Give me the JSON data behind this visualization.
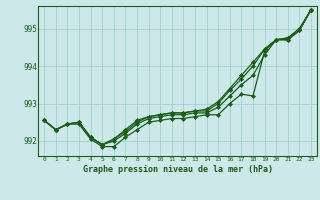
{
  "title": "Graphe pression niveau de la mer (hPa)",
  "bg_color": "#cce8e8",
  "grid_color": "#99cccc",
  "line_color": "#1a5c1a",
  "x_labels": [
    "0",
    "1",
    "2",
    "3",
    "4",
    "5",
    "6",
    "7",
    "8",
    "9",
    "10",
    "11",
    "12",
    "13",
    "14",
    "15",
    "16",
    "17",
    "18",
    "19",
    "20",
    "21",
    "22",
    "23"
  ],
  "ylim": [
    991.6,
    995.6
  ],
  "yticks": [
    992,
    993,
    994,
    995
  ],
  "series": [
    [
      992.55,
      992.3,
      992.45,
      992.45,
      992.05,
      991.85,
      991.85,
      992.1,
      992.3,
      992.5,
      992.55,
      992.6,
      992.6,
      992.65,
      992.7,
      992.7,
      993.0,
      993.25,
      993.2,
      994.4,
      994.7,
      994.7,
      994.95,
      995.5
    ],
    [
      992.55,
      992.3,
      992.45,
      992.5,
      992.1,
      991.9,
      992.0,
      992.2,
      992.45,
      992.6,
      992.65,
      992.7,
      992.7,
      992.75,
      992.75,
      992.9,
      993.2,
      993.5,
      993.75,
      994.3,
      994.7,
      994.7,
      994.95,
      995.5
    ],
    [
      992.55,
      992.3,
      992.45,
      992.5,
      992.1,
      991.9,
      992.05,
      992.25,
      992.5,
      992.65,
      992.7,
      992.75,
      992.75,
      992.8,
      992.8,
      993.0,
      993.35,
      993.65,
      994.0,
      994.45,
      994.7,
      994.75,
      994.95,
      995.5
    ],
    [
      992.55,
      992.3,
      992.45,
      992.5,
      992.1,
      991.9,
      992.05,
      992.3,
      992.55,
      992.65,
      992.7,
      992.75,
      992.75,
      992.8,
      992.85,
      993.05,
      993.4,
      993.75,
      994.1,
      994.45,
      994.7,
      994.75,
      995.0,
      995.5
    ]
  ]
}
